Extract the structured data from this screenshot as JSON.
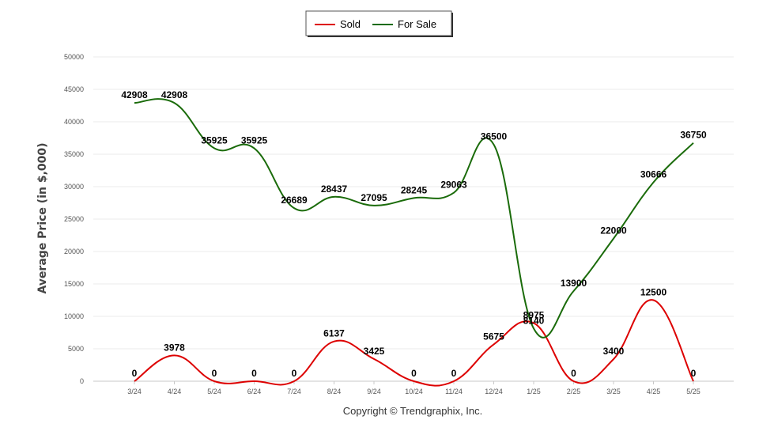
{
  "chart_data": {
    "type": "line",
    "categories": [
      "3/24",
      "4/24",
      "5/24",
      "6/24",
      "7/24",
      "8/24",
      "9/24",
      "10/24",
      "11/24",
      "12/24",
      "1/25",
      "2/25",
      "3/25",
      "4/25",
      "5/25"
    ],
    "series": [
      {
        "name": "Sold",
        "color": "#dd0000",
        "values": [
          0,
          3978,
          0,
          0,
          0,
          6137,
          3425,
          0,
          0,
          5675,
          8975,
          0,
          3400,
          12500,
          0
        ],
        "labels": [
          "0",
          "3978",
          "0",
          "0",
          "0",
          "6137",
          "3425",
          "0",
          "0",
          "5675",
          "8975",
          "0",
          "3400",
          "12500",
          "0"
        ]
      },
      {
        "name": "For Sale",
        "color": "#1a6b0a",
        "values": [
          42908,
          42908,
          35925,
          35925,
          26689,
          28437,
          27095,
          28245,
          29063,
          36500,
          8140,
          13900,
          22000,
          30666,
          36750
        ],
        "labels": [
          "42908",
          "42908",
          "35925",
          "35925",
          "26689",
          "28437",
          "27095",
          "28245",
          "29063",
          "36500",
          "8140",
          "13900",
          "22000",
          "30666",
          "36750"
        ]
      }
    ],
    "ylabel": "Average Price (in $,000)",
    "ylim": [
      0,
      50000
    ],
    "yticks": [
      "0",
      "5000",
      "10000",
      "15000",
      "20000",
      "25000",
      "30000",
      "35000",
      "40000",
      "45000",
      "50000"
    ],
    "grid": true,
    "legend_position": "top-center"
  },
  "footer": {
    "copyright": "Copyright © Trendgraphix, Inc."
  }
}
